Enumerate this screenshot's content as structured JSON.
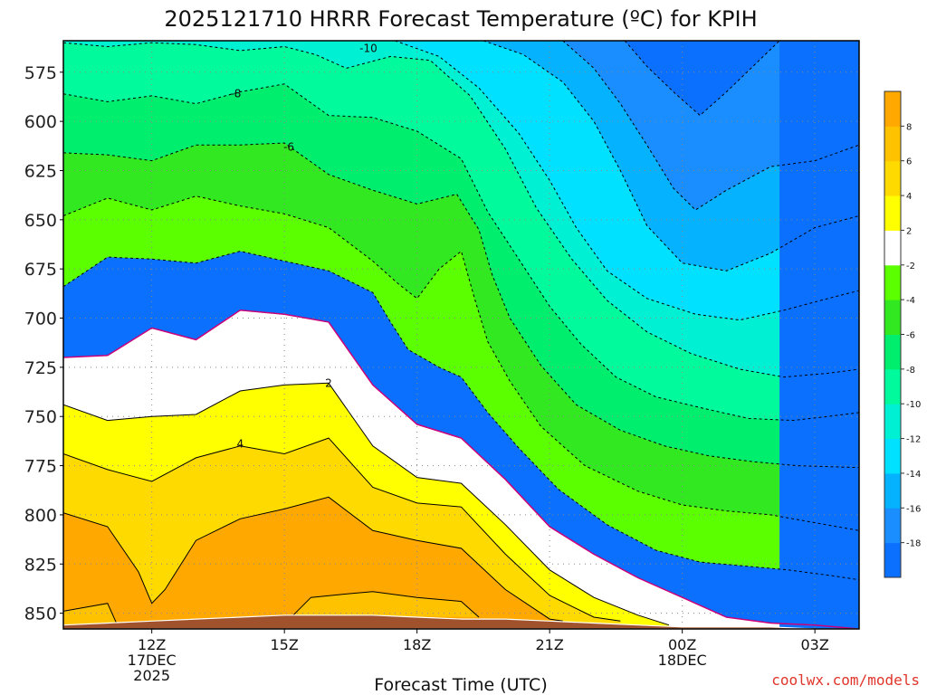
{
  "chart_data": {
    "type": "contour",
    "title": "2025121710 HRRR Forecast Temperature (ºC) for KPIH",
    "xlabel": "Forecast Time (UTC)",
    "ylabel": "",
    "credit": "coolwx.com/models",
    "xlim": [
      10.0,
      28.0
    ],
    "ylim": [
      858,
      559
    ],
    "y_inverted": true,
    "yticks": [
      575,
      600,
      625,
      650,
      675,
      700,
      725,
      750,
      775,
      800,
      825,
      850
    ],
    "x_ticks": [
      {
        "x": 12,
        "lines": [
          "12Z",
          "17DEC",
          "2025"
        ]
      },
      {
        "x": 15,
        "lines": [
          "15Z"
        ]
      },
      {
        "x": 18,
        "lines": [
          "18Z"
        ]
      },
      {
        "x": 21,
        "lines": [
          "21Z"
        ]
      },
      {
        "x": 24,
        "lines": [
          "00Z",
          "18DEC"
        ]
      },
      {
        "x": 27,
        "lines": [
          "03Z"
        ]
      }
    ],
    "colorbar": {
      "levels": [
        -20,
        -18,
        -16,
        -14,
        -12,
        -10,
        -8,
        -6,
        -4,
        -2,
        2,
        4,
        6,
        8,
        10
      ],
      "tick_labels": [
        "-18",
        "-16",
        "-14",
        "-12",
        "-10",
        "-8",
        "-6",
        "-4",
        "-2",
        "2",
        "4",
        "6",
        "8"
      ],
      "tick_values": [
        -18,
        -16,
        -14,
        -12,
        -10,
        -8,
        -6,
        -4,
        -2,
        2,
        4,
        6,
        8
      ],
      "colors": [
        "#0c70ff",
        "#1a8eff",
        "#04b2fe",
        "#00e0ff",
        "#00f0d4",
        "#00fa9c",
        "#00ee6e",
        "#32e820",
        "#5cff00",
        "#ffffff",
        "#ffff00",
        "#ffda00",
        "#ffc200",
        "#ffa800"
      ]
    },
    "freezing_line_color": "#c8007a",
    "terrain_color": "#a0522d",
    "x": [
      10,
      11,
      12,
      13,
      14,
      15,
      16,
      17,
      18,
      19,
      20,
      21,
      22,
      23,
      24,
      25,
      26,
      27,
      28
    ],
    "surface_pressure": [
      856,
      855,
      854,
      853,
      852,
      851,
      851,
      851,
      852,
      853,
      853,
      854,
      855,
      856,
      857,
      857,
      857,
      858,
      858
    ],
    "contours": [
      {
        "level": -18,
        "points": [
          [
            22.7,
            559
          ],
          [
            23.2,
            572
          ],
          [
            23.8,
            585
          ],
          [
            24.4,
            597
          ],
          [
            25.0,
            585
          ],
          [
            25.6,
            572
          ],
          [
            26.2,
            559
          ]
        ]
      },
      {
        "level": -16,
        "points": [
          [
            21.3,
            559
          ],
          [
            22.0,
            573
          ],
          [
            22.6,
            591
          ],
          [
            23.2,
            612
          ],
          [
            23.8,
            634
          ],
          [
            24.3,
            645
          ],
          [
            25.0,
            635
          ],
          [
            26.0,
            623
          ],
          [
            27.0,
            620
          ],
          [
            28.0,
            612
          ]
        ]
      },
      {
        "level": -14,
        "points": [
          [
            19.5,
            559
          ],
          [
            20.4,
            566
          ],
          [
            21.3,
            580
          ],
          [
            22.0,
            600
          ],
          [
            22.6,
            625
          ],
          [
            23.2,
            653
          ],
          [
            24.0,
            672
          ],
          [
            25.0,
            676
          ],
          [
            26.0,
            667
          ],
          [
            27.0,
            654
          ],
          [
            28.0,
            648
          ]
        ]
      },
      {
        "level": -12,
        "points": [
          [
            17.5,
            559
          ],
          [
            18.5,
            567
          ],
          [
            19.4,
            583
          ],
          [
            20.3,
            606
          ],
          [
            21.0,
            630
          ],
          [
            21.6,
            654
          ],
          [
            22.3,
            676
          ],
          [
            23.2,
            690
          ],
          [
            24.3,
            698
          ],
          [
            25.3,
            701
          ],
          [
            26.3,
            696
          ],
          [
            27.3,
            690
          ],
          [
            28.0,
            686
          ]
        ]
      },
      {
        "level": -10,
        "points": [
          [
            10.0,
            560
          ],
          [
            11.0,
            562
          ],
          [
            12.0,
            560
          ],
          [
            13.0,
            561
          ],
          [
            14.0,
            564
          ],
          [
            15.0,
            562
          ],
          [
            15.7,
            566
          ],
          [
            16.4,
            573
          ],
          [
            17.4,
            567
          ],
          [
            18.3,
            569
          ],
          [
            19.2,
            587
          ],
          [
            20.0,
            614
          ],
          [
            20.7,
            644
          ],
          [
            21.5,
            670
          ],
          [
            22.3,
            691
          ],
          [
            23.2,
            707
          ],
          [
            24.2,
            718
          ],
          [
            25.3,
            726
          ],
          [
            26.3,
            730
          ],
          [
            27.3,
            728
          ],
          [
            28.0,
            726
          ]
        ]
      },
      {
        "level": -8,
        "points": [
          [
            10.0,
            586
          ],
          [
            11.0,
            590
          ],
          [
            12.0,
            587
          ],
          [
            13.0,
            591
          ],
          [
            14.0,
            585
          ],
          [
            15.0,
            581
          ],
          [
            16.0,
            597
          ],
          [
            17.0,
            598
          ],
          [
            18.0,
            605
          ],
          [
            19.0,
            619
          ],
          [
            19.6,
            646
          ],
          [
            20.3,
            670
          ],
          [
            21.0,
            694
          ],
          [
            21.7,
            713
          ],
          [
            22.5,
            730
          ],
          [
            23.4,
            740
          ],
          [
            24.5,
            746
          ],
          [
            25.5,
            751
          ],
          [
            26.5,
            752
          ],
          [
            27.3,
            750
          ],
          [
            28.0,
            748
          ]
        ]
      },
      {
        "level": -6,
        "points": [
          [
            10.0,
            616
          ],
          [
            11.0,
            617
          ],
          [
            12.0,
            620
          ],
          [
            13.0,
            612
          ],
          [
            14.0,
            612
          ],
          [
            15.0,
            611
          ],
          [
            16.0,
            627
          ],
          [
            17.0,
            635
          ],
          [
            18.0,
            642
          ],
          [
            18.9,
            637
          ],
          [
            19.4,
            655
          ],
          [
            19.7,
            678
          ],
          [
            20.1,
            700
          ],
          [
            20.8,
            724
          ],
          [
            21.6,
            744
          ],
          [
            22.6,
            757
          ],
          [
            23.6,
            765
          ],
          [
            24.6,
            770
          ],
          [
            25.6,
            773
          ],
          [
            26.6,
            775
          ],
          [
            28.0,
            776
          ]
        ]
      },
      {
        "level": -4,
        "points": [
          [
            10.0,
            648
          ],
          [
            11.0,
            639
          ],
          [
            12.0,
            645
          ],
          [
            13.0,
            638
          ],
          [
            14.0,
            643
          ],
          [
            15.0,
            647
          ],
          [
            16.0,
            654
          ],
          [
            17.0,
            671
          ],
          [
            17.6,
            683
          ],
          [
            18.0,
            690
          ],
          [
            18.5,
            675
          ],
          [
            19.0,
            666
          ],
          [
            19.3,
            690
          ],
          [
            19.6,
            712
          ],
          [
            20.1,
            732
          ],
          [
            20.8,
            755
          ],
          [
            21.8,
            775
          ],
          [
            23.0,
            788
          ],
          [
            24.0,
            795
          ],
          [
            25.0,
            798
          ],
          [
            26.0,
            800
          ],
          [
            27.0,
            804
          ],
          [
            28.0,
            808
          ]
        ]
      },
      {
        "level": -2,
        "points": [
          [
            10.0,
            684
          ],
          [
            11.0,
            669
          ],
          [
            12.0,
            670
          ],
          [
            13.0,
            672
          ],
          [
            14.0,
            666
          ],
          [
            15.0,
            671
          ],
          [
            16.0,
            676
          ],
          [
            17.0,
            687
          ],
          [
            17.4,
            702
          ],
          [
            17.8,
            716
          ],
          [
            18.5,
            725
          ],
          [
            19.0,
            730
          ],
          [
            19.6,
            748
          ],
          [
            20.3,
            766
          ],
          [
            21.2,
            787
          ],
          [
            22.3,
            805
          ],
          [
            23.4,
            818
          ],
          [
            24.4,
            824
          ],
          [
            25.4,
            826
          ],
          [
            26.4,
            828
          ],
          [
            27.4,
            831
          ],
          [
            28.0,
            833
          ]
        ]
      },
      {
        "level": 0,
        "points": [
          [
            10.0,
            720
          ],
          [
            11.0,
            719
          ],
          [
            12.0,
            705
          ],
          [
            13.0,
            711
          ],
          [
            14.0,
            696
          ],
          [
            15.0,
            698
          ],
          [
            16.0,
            702
          ],
          [
            17.0,
            734
          ],
          [
            18.0,
            754
          ],
          [
            19.0,
            761
          ],
          [
            20.0,
            782
          ],
          [
            21.0,
            806
          ],
          [
            22.0,
            820
          ],
          [
            23.0,
            832
          ],
          [
            24.0,
            842
          ],
          [
            25.0,
            852
          ],
          [
            26.0,
            855
          ],
          [
            27.0,
            856
          ],
          [
            28.0,
            858
          ]
        ]
      },
      {
        "level": 2,
        "points": [
          [
            10.0,
            744
          ],
          [
            11.0,
            752
          ],
          [
            12.0,
            750
          ],
          [
            13.0,
            749
          ],
          [
            14.0,
            737
          ],
          [
            15.0,
            734
          ],
          [
            16.0,
            733
          ],
          [
            17.0,
            765
          ],
          [
            18.0,
            781
          ],
          [
            19.0,
            784
          ],
          [
            20.0,
            805
          ],
          [
            21.0,
            828
          ],
          [
            22.0,
            842
          ],
          [
            23.0,
            851
          ],
          [
            23.7,
            856
          ]
        ]
      },
      {
        "level": 4,
        "points": [
          [
            10.0,
            769
          ],
          [
            11.0,
            777
          ],
          [
            12.0,
            783
          ],
          [
            13.0,
            771
          ],
          [
            14.0,
            765
          ],
          [
            15.0,
            769
          ],
          [
            16.0,
            761
          ],
          [
            17.0,
            786
          ],
          [
            18.0,
            794
          ],
          [
            19.0,
            796
          ],
          [
            20.0,
            820
          ],
          [
            21.0,
            841
          ],
          [
            22.0,
            852
          ],
          [
            22.6,
            854
          ]
        ]
      },
      {
        "level": 6,
        "points": [
          [
            10.0,
            799
          ],
          [
            11.0,
            806
          ],
          [
            11.7,
            829
          ],
          [
            12.0,
            845
          ],
          [
            12.3,
            838
          ],
          [
            13.0,
            813
          ],
          [
            14.0,
            802
          ],
          [
            15.0,
            797
          ],
          [
            16.0,
            791
          ],
          [
            17.0,
            808
          ],
          [
            18.0,
            813
          ],
          [
            19.0,
            817
          ],
          [
            20.0,
            838
          ],
          [
            21.0,
            853
          ],
          [
            21.3,
            854
          ]
        ]
      },
      {
        "level": 8,
        "points": [
          [
            10.0,
            849
          ],
          [
            11.0,
            845
          ],
          [
            11.2,
            855
          ]
        ]
      },
      {
        "level": 8,
        "points": [
          [
            15.2,
            851
          ],
          [
            15.6,
            842
          ],
          [
            16.5,
            840
          ],
          [
            17.0,
            839
          ],
          [
            18.0,
            842
          ],
          [
            19.0,
            844
          ],
          [
            19.4,
            852
          ]
        ]
      }
    ],
    "contour_labels": [
      {
        "level": -10,
        "text": "-10",
        "x": 16.9,
        "y": 563
      },
      {
        "level": -8,
        "text": "-8",
        "x": 13.9,
        "y": 586
      },
      {
        "level": -6,
        "text": "-6",
        "x": 15.1,
        "y": 613
      },
      {
        "level": 2,
        "text": "2",
        "x": 16.0,
        "y": 733
      },
      {
        "level": 4,
        "text": "4",
        "x": 14.0,
        "y": 764
      }
    ]
  }
}
